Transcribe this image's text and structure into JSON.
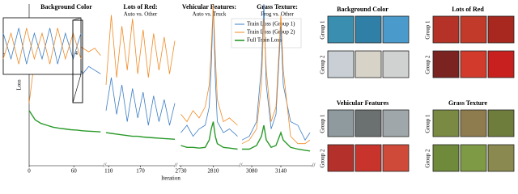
{
  "chart_data": [
    {
      "type": "line",
      "title": "Background Color",
      "xlabel": "Iteration",
      "ylabel": "Loss",
      "x": [
        0,
        8,
        16,
        24,
        32,
        40,
        48,
        56,
        64,
        72,
        80,
        88,
        96
      ],
      "xlim": [
        0,
        100
      ],
      "xticks": [
        0,
        60
      ],
      "ylim": [
        0.8,
        5.2
      ],
      "series": [
        {
          "color": "#3b7dc4",
          "values": [
            4.4,
            3.3,
            3.6,
            3.5,
            3.8,
            3.4,
            3.7,
            3.5,
            3.6,
            3.3,
            3.5,
            3.4,
            3.3
          ]
        },
        {
          "color": "#f08a24",
          "values": [
            2.5,
            3.8,
            4.6,
            4.0,
            4.3,
            3.9,
            4.2,
            4.0,
            4.1,
            4.0,
            3.9,
            4.0,
            3.8
          ]
        },
        {
          "color": "#2a9a2a",
          "values": [
            2.3,
            2.05,
            1.95,
            1.9,
            1.85,
            1.82,
            1.8,
            1.78,
            1.77,
            1.75,
            1.74,
            1.73,
            1.72
          ]
        }
      ]
    },
    {
      "type": "line",
      "title": "Lots of Red:",
      "subtitle": "Auto vs. Other",
      "x": [
        105,
        115,
        125,
        135,
        145,
        155,
        165,
        175,
        185,
        195,
        205,
        215,
        225,
        235
      ],
      "xlim": [
        105,
        235
      ],
      "xticks": [
        110,
        170
      ],
      "ylim": [
        0.8,
        5.2
      ],
      "series": [
        {
          "color": "#3b7dc4",
          "values": [
            2.3,
            3.2,
            2.2,
            3.0,
            2.0,
            2.9,
            2.1,
            2.8,
            1.9,
            2.7,
            2.0,
            2.6,
            1.9,
            2.5
          ]
        },
        {
          "color": "#f08a24",
          "values": [
            3.0,
            4.9,
            3.2,
            4.6,
            3.4,
            4.8,
            3.3,
            4.5,
            3.2,
            4.4,
            3.4,
            4.3,
            3.3,
            4.2
          ]
        },
        {
          "color": "#2a9a2a",
          "values": [
            1.7,
            1.68,
            1.66,
            1.64,
            1.62,
            1.6,
            1.6,
            1.58,
            1.57,
            1.56,
            1.55,
            1.54,
            1.53,
            1.52
          ]
        }
      ]
    },
    {
      "type": "line",
      "title": "Vehicular Features:",
      "subtitle": "Auto vs. Truck",
      "x": [
        2730,
        2745,
        2760,
        2775,
        2790,
        2800,
        2805,
        2810,
        2815,
        2820,
        2835,
        2850,
        2870
      ],
      "xlim": [
        2725,
        2875
      ],
      "xticks": [
        2730,
        2810
      ],
      "ylim": [
        0.8,
        5.2
      ],
      "series": [
        {
          "name": "Train Loss (Group 1)",
          "color": "#3b7dc4",
          "values": [
            1.7,
            1.9,
            1.6,
            1.8,
            1.9,
            2.4,
            3.5,
            5.2,
            3.2,
            2.0,
            1.7,
            1.8,
            1.6
          ]
        },
        {
          "name": "Train Loss (Group 2)",
          "color": "#f08a24",
          "values": [
            2.2,
            2.0,
            2.3,
            2.1,
            2.4,
            3.0,
            4.0,
            5.2,
            3.8,
            2.6,
            2.0,
            2.1,
            1.9
          ]
        },
        {
          "name": "Full Train Loss",
          "color": "#2a9a2a",
          "values": [
            1.35,
            1.3,
            1.3,
            1.28,
            1.3,
            1.5,
            1.8,
            2.0,
            1.6,
            1.4,
            1.3,
            1.28,
            1.25
          ]
        }
      ]
    },
    {
      "type": "line",
      "title": "Grass Texture:",
      "subtitle": "Frog vs. Other",
      "x": [
        3060,
        3075,
        3090,
        3100,
        3105,
        3110,
        3120,
        3130,
        3140,
        3145,
        3160,
        3175,
        3190,
        3200
      ],
      "xlim": [
        3060,
        3205
      ],
      "xticks": [
        3080,
        3140
      ],
      "ylim": [
        0.8,
        5.2
      ],
      "series": [
        {
          "color": "#3b7dc4",
          "values": [
            1.5,
            1.6,
            2.0,
            3.5,
            5.2,
            3.0,
            1.8,
            2.2,
            4.6,
            3.0,
            2.0,
            1.9,
            1.5,
            1.7
          ]
        },
        {
          "color": "#f08a24",
          "values": [
            1.4,
            1.5,
            1.8,
            3.0,
            4.8,
            3.4,
            2.0,
            2.4,
            4.9,
            3.4,
            1.6,
            1.4,
            1.4,
            1.5
          ]
        },
        {
          "color": "#2a9a2a",
          "values": [
            1.25,
            1.25,
            1.35,
            1.6,
            1.9,
            1.5,
            1.3,
            1.35,
            1.7,
            1.5,
            1.3,
            1.25,
            1.22,
            1.2
          ]
        }
      ]
    },
    {
      "type": "line",
      "x": [
        0,
        1,
        2,
        3,
        4,
        5,
        6,
        7,
        8,
        9,
        10
      ],
      "xlim": [
        0,
        10
      ],
      "ylim": [
        3.6,
        4.7
      ],
      "yticks": [
        4
      ],
      "series": [
        {
          "color": "#3b7dc4",
          "values": [
            4.4,
            3.9,
            4.5,
            3.8,
            4.4,
            3.9,
            4.5,
            3.8,
            4.4,
            3.9,
            4.4
          ]
        },
        {
          "color": "#f08a24",
          "values": [
            3.9,
            4.4,
            3.8,
            4.5,
            3.9,
            4.4,
            3.8,
            4.5,
            3.9,
            4.4,
            3.9
          ]
        }
      ]
    }
  ],
  "image_grids": [
    {
      "title": "Background Color",
      "rows": [
        "Group 1",
        "Group 2"
      ]
    },
    {
      "title": "Lots of Red",
      "rows": [
        "Group 1",
        "Group 2"
      ]
    },
    {
      "title": "Vehicular Features",
      "rows": [
        "Group 1",
        "Group 2"
      ]
    },
    {
      "title": "Grass Texture",
      "rows": [
        "Group 1",
        "Group 2"
      ]
    }
  ]
}
